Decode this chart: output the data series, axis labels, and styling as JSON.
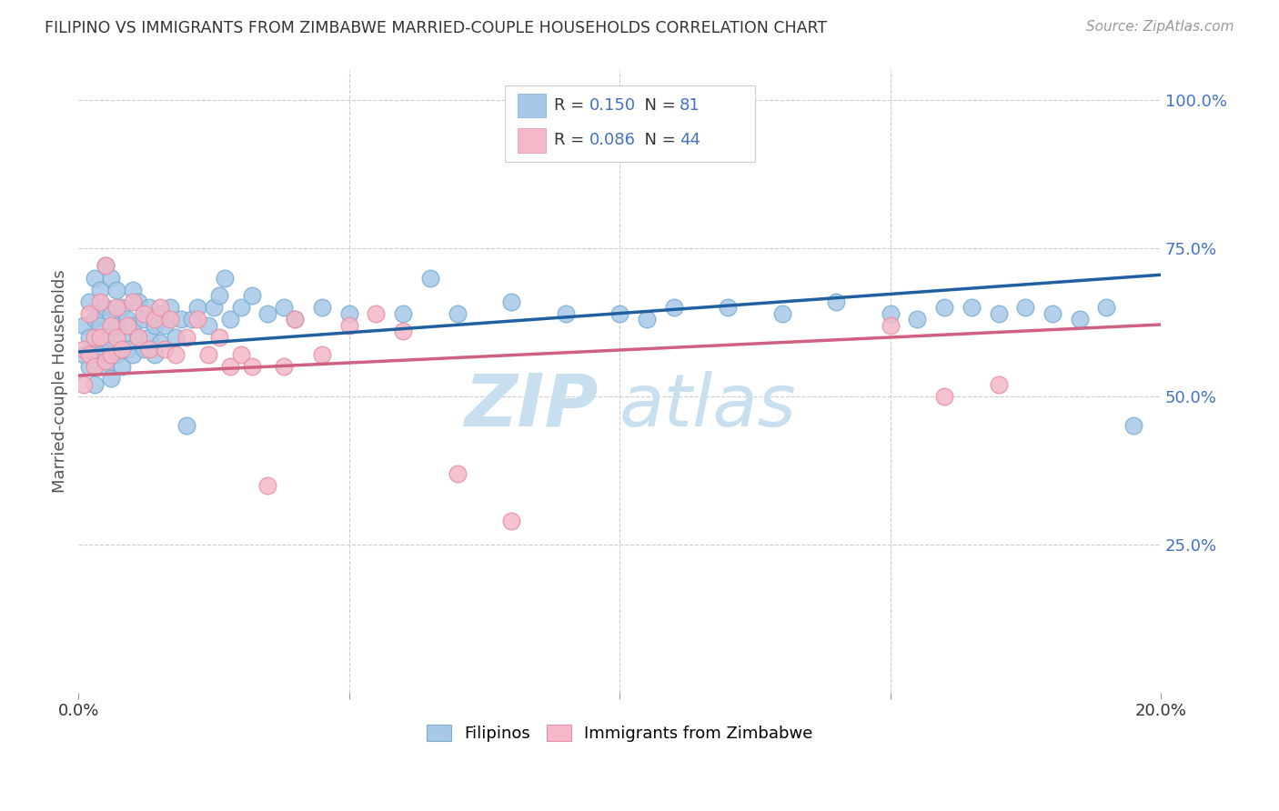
{
  "title": "FILIPINO VS IMMIGRANTS FROM ZIMBABWE MARRIED-COUPLE HOUSEHOLDS CORRELATION CHART",
  "source": "Source: ZipAtlas.com",
  "ylabel": "Married-couple Households",
  "xlim": [
    0.0,
    0.2
  ],
  "ylim": [
    0.0,
    1.05
  ],
  "xticks": [
    0.0,
    0.05,
    0.1,
    0.15,
    0.2
  ],
  "xtick_labels": [
    "0.0%",
    "",
    "",
    "",
    "20.0%"
  ],
  "ytick_vals_right": [
    0.25,
    0.5,
    0.75,
    1.0
  ],
  "ytick_labels_right": [
    "25.0%",
    "50.0%",
    "75.0%",
    "100.0%"
  ],
  "blue_color": "#a8c8e8",
  "blue_edge_color": "#7bafd4",
  "pink_color": "#f4b8c8",
  "pink_edge_color": "#e890a8",
  "blue_line_color": "#2060a0",
  "pink_line_color": "#d06080",
  "background_color": "#ffffff",
  "grid_color": "#cccccc",
  "title_color": "#333333",
  "ylabel_color": "#555555",
  "right_tick_color": "#4472c4",
  "bottom_tick_color": "#333333",
  "watermark_zip_color": "#c8dff0",
  "watermark_atlas_color": "#c8dff0",
  "blue_line_intercept": 0.575,
  "blue_line_slope": 0.65,
  "pink_line_intercept": 0.535,
  "pink_line_slope": 0.43,
  "filipinos_x": [
    0.001,
    0.001,
    0.002,
    0.002,
    0.002,
    0.003,
    0.003,
    0.003,
    0.003,
    0.004,
    0.004,
    0.004,
    0.005,
    0.005,
    0.005,
    0.005,
    0.006,
    0.006,
    0.006,
    0.006,
    0.007,
    0.007,
    0.007,
    0.008,
    0.008,
    0.008,
    0.009,
    0.009,
    0.01,
    0.01,
    0.01,
    0.011,
    0.011,
    0.012,
    0.012,
    0.013,
    0.013,
    0.014,
    0.014,
    0.015,
    0.015,
    0.016,
    0.017,
    0.018,
    0.019,
    0.02,
    0.021,
    0.022,
    0.024,
    0.025,
    0.026,
    0.027,
    0.028,
    0.03,
    0.032,
    0.035,
    0.038,
    0.04,
    0.045,
    0.05,
    0.06,
    0.065,
    0.07,
    0.08,
    0.09,
    0.1,
    0.105,
    0.11,
    0.12,
    0.13,
    0.14,
    0.15,
    0.155,
    0.16,
    0.165,
    0.17,
    0.175,
    0.18,
    0.185,
    0.19,
    0.195
  ],
  "filipinos_y": [
    0.62,
    0.57,
    0.66,
    0.6,
    0.55,
    0.7,
    0.63,
    0.58,
    0.52,
    0.68,
    0.62,
    0.57,
    0.72,
    0.65,
    0.6,
    0.55,
    0.7,
    0.64,
    0.58,
    0.53,
    0.68,
    0.62,
    0.57,
    0.65,
    0.6,
    0.55,
    0.63,
    0.58,
    0.68,
    0.62,
    0.57,
    0.66,
    0.6,
    0.63,
    0.58,
    0.65,
    0.6,
    0.62,
    0.57,
    0.64,
    0.59,
    0.62,
    0.65,
    0.6,
    0.63,
    0.45,
    0.63,
    0.65,
    0.62,
    0.65,
    0.67,
    0.7,
    0.63,
    0.65,
    0.67,
    0.64,
    0.65,
    0.63,
    0.65,
    0.64,
    0.64,
    0.7,
    0.64,
    0.66,
    0.64,
    0.64,
    0.63,
    0.65,
    0.65,
    0.64,
    0.66,
    0.64,
    0.63,
    0.65,
    0.65,
    0.64,
    0.65,
    0.64,
    0.63,
    0.65,
    0.45
  ],
  "zimbabwe_x": [
    0.001,
    0.001,
    0.002,
    0.002,
    0.003,
    0.003,
    0.004,
    0.004,
    0.005,
    0.005,
    0.006,
    0.006,
    0.007,
    0.007,
    0.008,
    0.009,
    0.01,
    0.011,
    0.012,
    0.013,
    0.014,
    0.015,
    0.016,
    0.017,
    0.018,
    0.02,
    0.022,
    0.024,
    0.026,
    0.028,
    0.03,
    0.032,
    0.035,
    0.038,
    0.04,
    0.045,
    0.05,
    0.055,
    0.06,
    0.07,
    0.08,
    0.15,
    0.16,
    0.17
  ],
  "zimbabwe_y": [
    0.58,
    0.52,
    0.64,
    0.57,
    0.6,
    0.55,
    0.66,
    0.6,
    0.72,
    0.56,
    0.62,
    0.57,
    0.65,
    0.6,
    0.58,
    0.62,
    0.66,
    0.6,
    0.64,
    0.58,
    0.63,
    0.65,
    0.58,
    0.63,
    0.57,
    0.6,
    0.63,
    0.57,
    0.6,
    0.55,
    0.57,
    0.55,
    0.35,
    0.55,
    0.63,
    0.57,
    0.62,
    0.64,
    0.61,
    0.37,
    0.29,
    0.62,
    0.5,
    0.52
  ]
}
